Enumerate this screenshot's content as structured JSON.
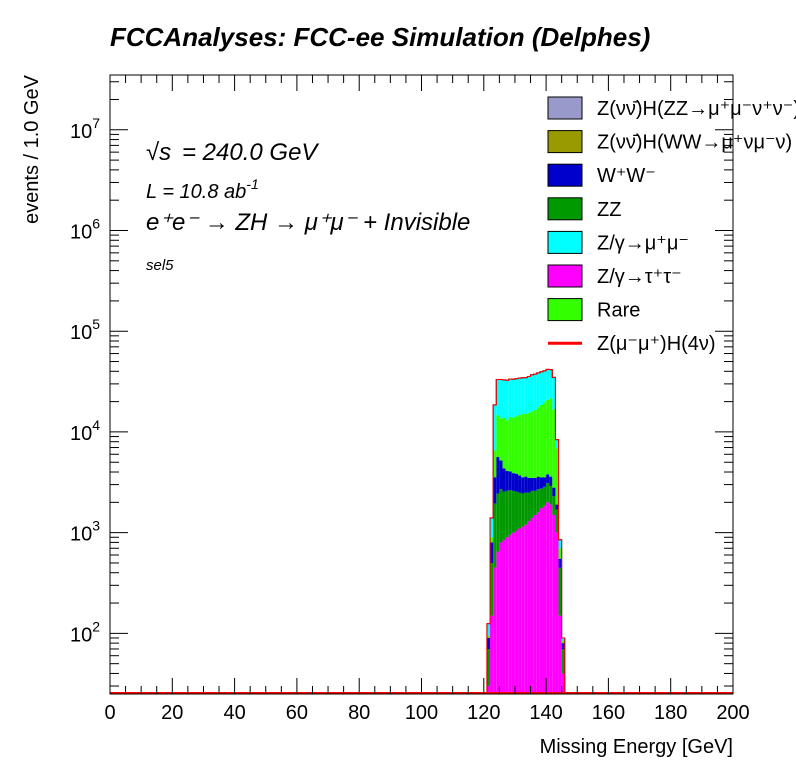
{
  "header": {
    "title": "FCCAnalyses: FCC-ee Simulation (Delphes)"
  },
  "annotations": {
    "sqrt_s_symbol": "√s",
    "sqrt_s_value": "= 240.0 GeV",
    "lumi_main": "L = 10.8 ab",
    "lumi_exp": "-1",
    "process": "e⁺e⁻ → ZH → μ⁺μ⁻ + Invisible",
    "selection": "sel5"
  },
  "legend": [
    {
      "label": "Z(νν̄)H(ZZ→μ⁺μ⁻ν⁺ν⁻)",
      "color": "#999acb",
      "kind": "box"
    },
    {
      "label": "Z(νν̄)H(WW→μ⁺νμ⁻ν)",
      "color": "#999900",
      "kind": "box"
    },
    {
      "label": "W⁺W⁻",
      "color": "#0000cc",
      "kind": "box"
    },
    {
      "label": "ZZ",
      "color": "#009900",
      "kind": "box"
    },
    {
      "label": "Z/γ→μ⁺μ⁻",
      "color": "#00ffff",
      "kind": "box"
    },
    {
      "label": "Z/γ→τ⁺τ⁻",
      "color": "#ff00ff",
      "kind": "box"
    },
    {
      "label": "Rare",
      "color": "#33ff00",
      "kind": "box"
    },
    {
      "label": "Z(μ⁻μ⁺)H(4ν)",
      "color": "#ff0000",
      "kind": "line"
    }
  ],
  "chart_data": {
    "type": "area",
    "title": "FCCAnalyses: FCC-ee Simulation (Delphes)",
    "xlabel": "Missing Energy [GeV]",
    "ylabel": "events / 1.0 GeV",
    "xlim": [
      0,
      200
    ],
    "ylim": [
      25,
      35000000
    ],
    "log_y": true,
    "stacked": true,
    "x_ticks": [
      0,
      20,
      40,
      60,
      80,
      100,
      120,
      140,
      160,
      180,
      200
    ],
    "y_ticks": [
      {
        "value": 100,
        "base": "10",
        "exp": "2"
      },
      {
        "value": 1000,
        "base": "10",
        "exp": "3"
      },
      {
        "value": 10000,
        "base": "10",
        "exp": "4"
      },
      {
        "value": 100000,
        "base": "10",
        "exp": "5"
      },
      {
        "value": 1000000,
        "base": "10",
        "exp": "6"
      },
      {
        "value": 10000000,
        "base": "10",
        "exp": "7"
      }
    ],
    "bin_width": 1.0,
    "bin_low_edges": [
      121,
      122,
      123,
      124,
      125,
      126,
      127,
      128,
      129,
      130,
      131,
      132,
      133,
      134,
      135,
      136,
      137,
      138,
      139,
      140,
      141,
      142,
      143,
      144,
      145
    ],
    "stack_order": [
      "Z/γ→τ⁺τ⁻",
      "ZZ",
      "W⁺W⁻",
      "Rare",
      "Z/γ→μ⁺μ⁻"
    ],
    "series": [
      {
        "name": "Z/γ→τ⁺τ⁻",
        "color": "#ff00ff",
        "values": [
          30,
          150,
          450,
          650,
          800,
          850,
          900,
          950,
          1000,
          1050,
          1100,
          1150,
          1200,
          1300,
          1400,
          1500,
          1600,
          1750,
          1850,
          2000,
          1900,
          1500,
          1000,
          150,
          40
        ]
      },
      {
        "name": "ZZ",
        "color": "#009900",
        "values": [
          40,
          350,
          1500,
          1800,
          1900,
          1700,
          1700,
          1700,
          1600,
          1500,
          1400,
          1300,
          1300,
          1200,
          1200,
          1100,
          1100,
          1000,
          1000,
          1100,
          1000,
          800,
          700,
          300,
          30
        ]
      },
      {
        "name": "W⁺W⁻",
        "color": "#0000cc",
        "values": [
          20,
          300,
          1600,
          3200,
          2500,
          1800,
          1500,
          1400,
          1300,
          1300,
          1200,
          1100,
          1100,
          1000,
          900,
          900,
          900,
          800,
          700,
          700,
          700,
          500,
          200,
          100,
          10
        ]
      },
      {
        "name": "Rare",
        "color": "#33ff00",
        "values": [
          5,
          100,
          3000,
          9000,
          8500,
          9500,
          9000,
          10000,
          10000,
          10500,
          11000,
          11500,
          11500,
          12000,
          12500,
          13000,
          14000,
          15000,
          16000,
          17000,
          18000,
          14000,
          5000,
          150,
          5
        ]
      },
      {
        "name": "Z/γ→μ⁺μ⁻",
        "color": "#00ffff",
        "values": [
          30,
          500,
          12000,
          18500,
          19500,
          19000,
          19500,
          19500,
          19500,
          19500,
          19500,
          19500,
          19500,
          20000,
          21000,
          21000,
          21000,
          21000,
          21000,
          21000,
          20000,
          18000,
          1500,
          150,
          5
        ]
      }
    ],
    "signal": {
      "name": "Z(μ⁻μ⁺)H(4ν)",
      "color": "#ff0000",
      "style": "line",
      "values": [
        0,
        0,
        0,
        0,
        0,
        0,
        0,
        0,
        0,
        0,
        0,
        0,
        0,
        0,
        0,
        0,
        0,
        0,
        0,
        0,
        0,
        0,
        0,
        0,
        0
      ]
    }
  }
}
